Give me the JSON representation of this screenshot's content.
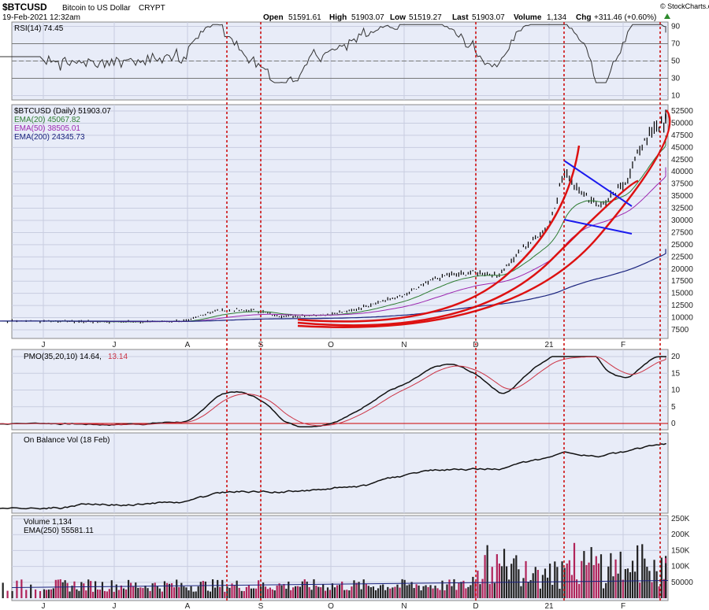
{
  "header": {
    "symbol": "$BTCUSD",
    "name": "Bitcoin to US Dollar",
    "exchange": "CRYPT",
    "date": "19-Feb-2021 12:32am",
    "open_label": "Open",
    "open": "51591.61",
    "high_label": "High",
    "high": "51903.07",
    "low_label": "Low",
    "low": "51519.27",
    "last_label": "Last",
    "last": "51903.07",
    "volume_label": "Volume",
    "volume": "1,134",
    "chg_label": "Chg",
    "chg": "+311.46 (+0.60%)",
    "watermark": "© StockCharts.com"
  },
  "colors": {
    "panel_bg": "#e8ecf8",
    "price": "#000000",
    "ema20": "#2e7d32",
    "ema50": "#9c27b0",
    "ema200": "#1a237e",
    "parabola": "#dd1111",
    "trendline": "#1a1aee",
    "rsi_fill": "#c8b48a",
    "pmo_signal": "#cc3344",
    "vol_up": "#222222",
    "vol_down": "#b0245a",
    "vline": "#cc0000"
  },
  "x_labels": [
    "J",
    "J",
    "A",
    "S",
    "O",
    "N",
    "D",
    "21",
    "F"
  ],
  "panels": {
    "rsi": {
      "label": "RSI(14) 74.45",
      "ticks": [
        "90",
        "70",
        "50",
        "30",
        "10"
      ]
    },
    "price": {
      "label": "$BTCUSD (Daily) 51903.07",
      "legend": [
        {
          "text": "EMA(20) 45067.82",
          "color": "#2e7d32"
        },
        {
          "text": "EMA(50) 38505.01",
          "color": "#9c27b0"
        },
        {
          "text": "EMA(200) 24345.73",
          "color": "#1a237e"
        }
      ],
      "ticks": [
        "52500",
        "50000",
        "47500",
        "45000",
        "42500",
        "40000",
        "37500",
        "35000",
        "32500",
        "30000",
        "27500",
        "25000",
        "22500",
        "20000",
        "17500",
        "15000",
        "12500",
        "10000",
        "7500"
      ]
    },
    "pmo": {
      "label": "PMO(35,20,10) 14.64,",
      "label2": "13.14",
      "ticks": [
        "20",
        "15",
        "10",
        "5",
        "0"
      ]
    },
    "obv": {
      "label": "On Balance Vol (18 Feb)"
    },
    "volume": {
      "label": "Volume 1,134",
      "ema_label": "EMA(250) 55581.11",
      "ticks": [
        "250K",
        "200K",
        "150K",
        "100K",
        "50000"
      ]
    }
  },
  "chart_data": {
    "type": "line",
    "title": "$BTCUSD Bitcoin to US Dollar CRYPT",
    "x_months": [
      "J",
      "J",
      "A",
      "S",
      "O",
      "N",
      "D",
      "21",
      "F"
    ],
    "price_keypoints": {
      "x_month_fraction": [
        0,
        0.5,
        1,
        1.5,
        2,
        2.3,
        2.6,
        3,
        3.2,
        3.5,
        4,
        4.3,
        4.6,
        5,
        5.3,
        5.6,
        6,
        6.3,
        6.6,
        7,
        7.2,
        7.5,
        7.7,
        8,
        8.3,
        8.5,
        8.7
      ],
      "close": [
        9300,
        9200,
        9150,
        9200,
        9300,
        11200,
        11600,
        11300,
        10400,
        10300,
        10800,
        11500,
        13000,
        14500,
        17000,
        18800,
        19300,
        18600,
        23500,
        29000,
        40000,
        35000,
        33000,
        37000,
        47000,
        49500,
        51903
      ]
    },
    "ema20_last": 45067.82,
    "ema50_last": 38505.01,
    "ema200_last": 24345.73,
    "rsi_last": 74.45,
    "pmo_last": 14.64,
    "pmo_signal_last": 13.14,
    "volume_last": 1134,
    "volume_ema250_last": 55581.11,
    "price_ylim": [
      7500,
      52500
    ],
    "rsi_ylim": [
      10,
      90
    ],
    "pmo_ylim": [
      0,
      20
    ],
    "volume_ylim": [
      0,
      250000
    ]
  }
}
